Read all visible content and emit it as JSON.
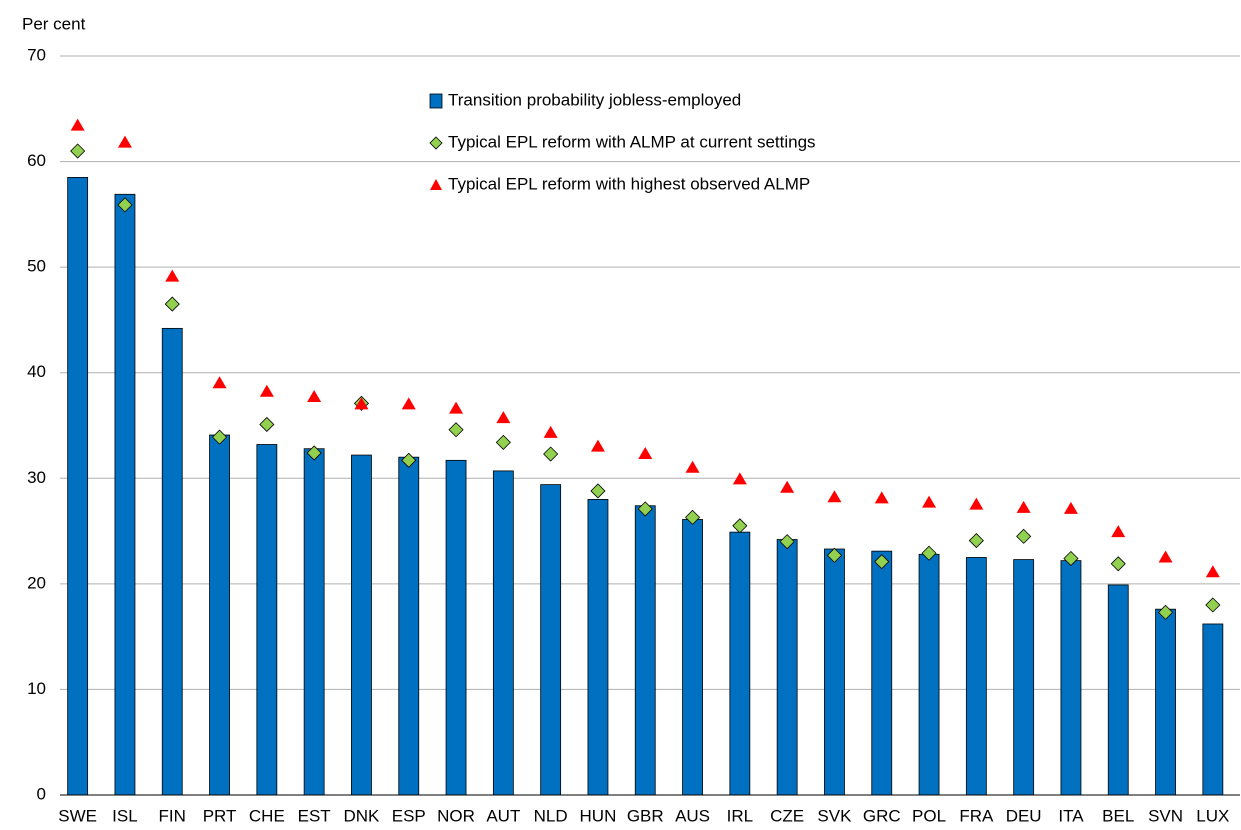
{
  "chart_data": {
    "type": "bar",
    "y_label": "Per cent",
    "categories": [
      "SWE",
      "ISL",
      "FIN",
      "PRT",
      "CHE",
      "EST",
      "DNK",
      "ESP",
      "NOR",
      "AUT",
      "NLD",
      "HUN",
      "GBR",
      "AUS",
      "IRL",
      "CZE",
      "SVK",
      "GRC",
      "POL",
      "FRA",
      "DEU",
      "ITA",
      "BEL",
      "SVN",
      "LUX"
    ],
    "series": [
      {
        "name": "Transition probability jobless-employed",
        "marker": "bar",
        "color": "#0070c0",
        "values": [
          58.5,
          56.9,
          44.2,
          34.1,
          33.2,
          32.8,
          32.2,
          32.0,
          31.7,
          30.7,
          29.4,
          28.0,
          27.4,
          26.1,
          24.9,
          24.2,
          23.3,
          23.1,
          22.8,
          22.5,
          22.3,
          22.2,
          19.9,
          17.6,
          16.2
        ]
      },
      {
        "name": "Typical EPL reform with ALMP at current settings",
        "marker": "diamond",
        "color": "#92d050",
        "values": [
          61.0,
          55.9,
          46.5,
          33.9,
          35.1,
          32.4,
          37.1,
          31.7,
          34.6,
          33.4,
          32.3,
          28.8,
          27.1,
          26.3,
          25.5,
          24.0,
          22.7,
          22.1,
          22.9,
          24.1,
          24.5,
          22.4,
          21.9,
          17.3,
          18.0
        ]
      },
      {
        "name": "Typical EPL reform with highest observed ALMP",
        "marker": "triangle",
        "color": "#ff0000",
        "values": [
          63.4,
          61.8,
          49.1,
          39.0,
          38.2,
          37.7,
          37.0,
          37.0,
          36.6,
          35.7,
          34.3,
          33.0,
          32.3,
          31.0,
          29.9,
          29.1,
          28.2,
          28.1,
          27.7,
          27.5,
          27.2,
          27.1,
          24.9,
          22.5,
          21.1
        ]
      }
    ],
    "ylim": [
      0,
      70
    ],
    "yticks": [
      0,
      10,
      20,
      30,
      40,
      50,
      60,
      70
    ],
    "grid": true
  }
}
